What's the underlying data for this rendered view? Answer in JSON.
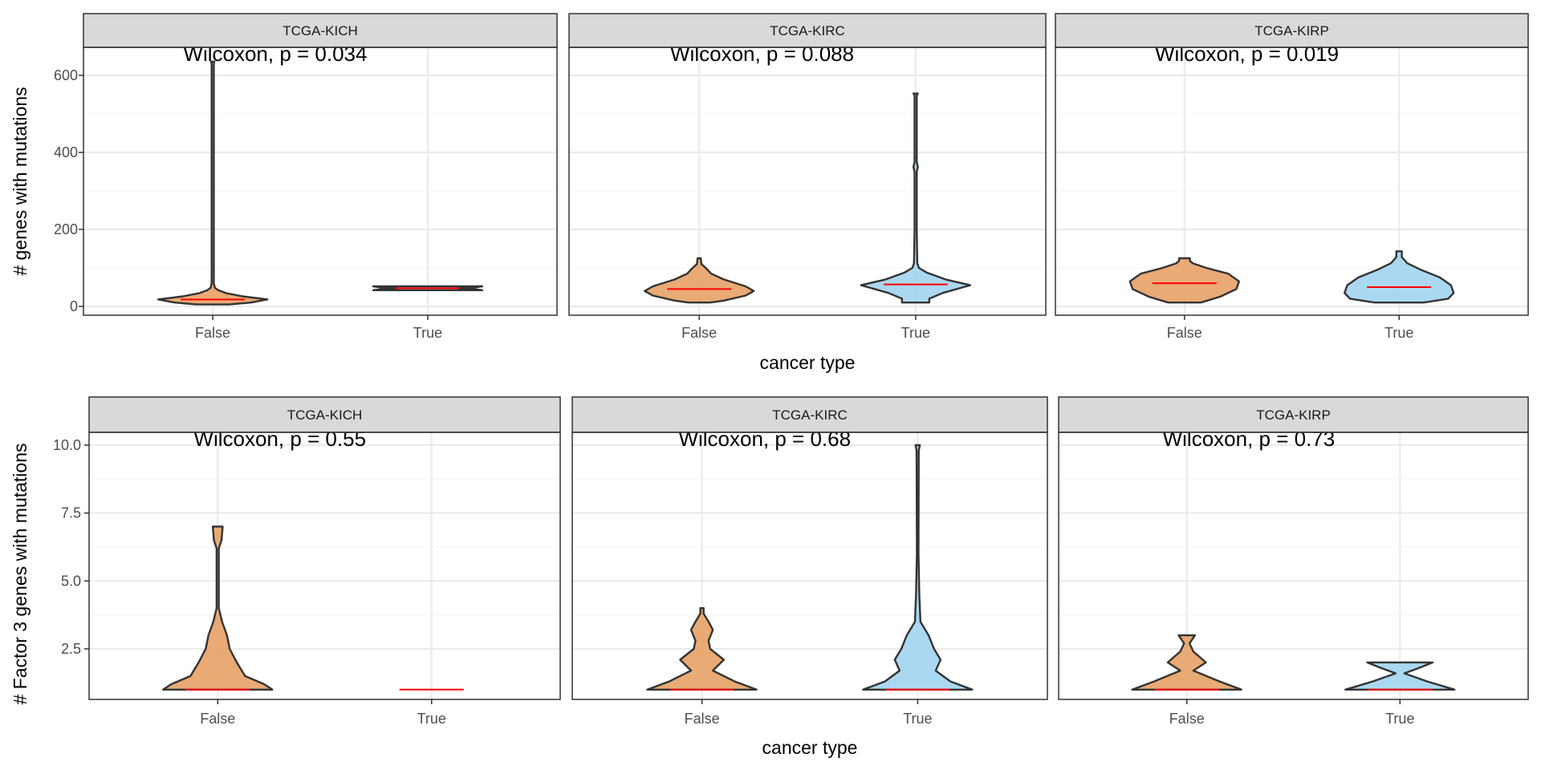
{
  "chart_data": [
    {
      "type": "violin",
      "ylabel": "# genes with mutations",
      "xlabel": "cancer type",
      "ylim": [
        -23,
        673
      ],
      "yticks": [
        "0",
        "200",
        "400",
        "600"
      ],
      "ytick_values": [
        0,
        200,
        400,
        600
      ],
      "categories": [
        "False",
        "True"
      ],
      "grid": true,
      "colors": {
        "False": "#E8A56E",
        "True": "#A6D6F0"
      },
      "median_color": "#FF0000",
      "panels": [
        {
          "strip": "TCGA-KICH",
          "annotation": "Wilcoxon, p = 0.034",
          "violins": [
            {
              "category": "False",
              "median": 18,
              "profile": [
                [
                  5,
                  0.3
                ],
                [
                  10,
                  0.7
                ],
                [
                  18,
                  1
                ],
                [
                  26,
                  0.55
                ],
                [
                  34,
                  0.25
                ],
                [
                  42,
                  0.1
                ],
                [
                  48,
                  0.04
                ],
                [
                  60,
                  0.02
                ],
                [
                  630,
                  0.02
                ],
                [
                  636,
                  0.03
                ]
              ]
            },
            {
              "category": "True",
              "median": 47,
              "profile": [
                [
                  42,
                  1
                ],
                [
                  45,
                  0.85
                ],
                [
                  47,
                  0.55
                ],
                [
                  49,
                  0.85
                ],
                [
                  52,
                  1
                ]
              ]
            }
          ]
        },
        {
          "strip": "TCGA-KIRC",
          "annotation": "Wilcoxon, p = 0.088",
          "violins": [
            {
              "category": "False",
              "median": 45,
              "profile": [
                [
                  10,
                  0.2
                ],
                [
                  15,
                  0.45
                ],
                [
                  28,
                  0.85
                ],
                [
                  40,
                  1
                ],
                [
                  52,
                  0.85
                ],
                [
                  70,
                  0.45
                ],
                [
                  85,
                  0.22
                ],
                [
                  100,
                  0.12
                ],
                [
                  110,
                  0.04
                ],
                [
                  125,
                  0.03
                ]
              ]
            },
            {
              "category": "True",
              "median": 57,
              "profile": [
                [
                  10,
                  0.25
                ],
                [
                  20,
                  0.25
                ],
                [
                  35,
                  0.5
                ],
                [
                  55,
                  1
                ],
                [
                  70,
                  0.55
                ],
                [
                  88,
                  0.2
                ],
                [
                  100,
                  0.06
                ],
                [
                  112,
                  0.03
                ],
                [
                  200,
                  0.02
                ],
                [
                  350,
                  0.02
                ],
                [
                  362,
                  0.04
                ],
                [
                  375,
                  0.02
                ],
                [
                  548,
                  0.02
                ],
                [
                  553,
                  0.04
                ]
              ]
            }
          ]
        },
        {
          "strip": "TCGA-KIRP",
          "annotation": "Wilcoxon, p = 0.019",
          "violins": [
            {
              "category": "False",
              "median": 60,
              "profile": [
                [
                  10,
                  0.3
                ],
                [
                  25,
                  0.65
                ],
                [
                  45,
                  0.95
                ],
                [
                  65,
                  1
                ],
                [
                  85,
                  0.8
                ],
                [
                  100,
                  0.4
                ],
                [
                  112,
                  0.15
                ],
                [
                  118,
                  0.1
                ],
                [
                  125,
                  0.1
                ]
              ]
            },
            {
              "category": "True",
              "median": 50,
              "profile": [
                [
                  10,
                  0.45
                ],
                [
                  20,
                  0.9
                ],
                [
                  35,
                  1
                ],
                [
                  55,
                  0.95
                ],
                [
                  75,
                  0.75
                ],
                [
                  95,
                  0.4
                ],
                [
                  112,
                  0.15
                ],
                [
                  128,
                  0.05
                ],
                [
                  143,
                  0.05
                ]
              ]
            }
          ]
        }
      ]
    },
    {
      "type": "violin",
      "ylabel": "# Factor 3 genes with mutations",
      "xlabel": "cancer type",
      "ylim": [
        0.64,
        10.47
      ],
      "yticks": [
        "2.5",
        "5.0",
        "7.5",
        "10.0"
      ],
      "ytick_values": [
        2.5,
        5.0,
        7.5,
        10.0
      ],
      "categories": [
        "False",
        "True"
      ],
      "grid": true,
      "colors": {
        "False": "#E8A56E",
        "True": "#A6D6F0"
      },
      "median_color": "#FF0000",
      "panels": [
        {
          "strip": "TCGA-KICH",
          "annotation": "Wilcoxon, p = 0.55",
          "violins": [
            {
              "category": "False",
              "median": 1,
              "profile": [
                [
                  1,
                  1
                ],
                [
                  1.2,
                  0.85
                ],
                [
                  1.5,
                  0.5
                ],
                [
                  2,
                  0.35
                ],
                [
                  2.5,
                  0.22
                ],
                [
                  3,
                  0.17
                ],
                [
                  3.5,
                  0.08
                ],
                [
                  4,
                  0.02
                ],
                [
                  6.2,
                  0.02
                ],
                [
                  6.5,
                  0.07
                ],
                [
                  7,
                  0.09
                ]
              ]
            },
            {
              "category": "True",
              "median": 1,
              "profile": []
            }
          ]
        },
        {
          "strip": "TCGA-KIRC",
          "annotation": "Wilcoxon, p = 0.68",
          "violins": [
            {
              "category": "False",
              "median": 1,
              "profile": [
                [
                  1,
                  1
                ],
                [
                  1.3,
                  0.6
                ],
                [
                  1.7,
                  0.2
                ],
                [
                  2.1,
                  0.4
                ],
                [
                  2.5,
                  0.15
                ],
                [
                  2.8,
                  0.12
                ],
                [
                  3.2,
                  0.2
                ],
                [
                  3.5,
                  0.12
                ],
                [
                  3.8,
                  0.03
                ],
                [
                  4,
                  0.03
                ]
              ]
            },
            {
              "category": "True",
              "median": 1,
              "profile": [
                [
                  1,
                  1
                ],
                [
                  1.3,
                  0.6
                ],
                [
                  1.7,
                  0.33
                ],
                [
                  2.1,
                  0.42
                ],
                [
                  2.5,
                  0.3
                ],
                [
                  3,
                  0.2
                ],
                [
                  3.5,
                  0.05
                ],
                [
                  4.5,
                  0.03
                ],
                [
                  6,
                  0.015
                ],
                [
                  9.8,
                  0.02
                ],
                [
                  10,
                  0.04
                ]
              ]
            }
          ]
        },
        {
          "strip": "TCGA-KIRP",
          "annotation": "Wilcoxon, p = 0.73",
          "violins": [
            {
              "category": "False",
              "median": 1,
              "profile": [
                [
                  1,
                  1
                ],
                [
                  1.3,
                  0.6
                ],
                [
                  1.7,
                  0.12
                ],
                [
                  2,
                  0.35
                ],
                [
                  2.4,
                  0.12
                ],
                [
                  2.7,
                  0.05
                ],
                [
                  3,
                  0.15
                ]
              ]
            },
            {
              "category": "True",
              "median": 1,
              "profile": [
                [
                  1,
                  1
                ],
                [
                  1.3,
                  0.5
                ],
                [
                  1.6,
                  0.08
                ],
                [
                  1.8,
                  0.35
                ],
                [
                  2,
                  0.6
                ]
              ]
            }
          ]
        }
      ]
    }
  ]
}
